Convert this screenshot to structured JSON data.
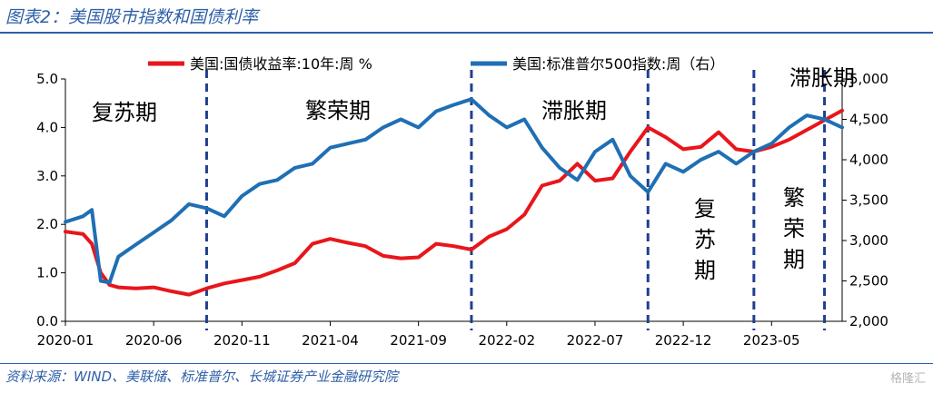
{
  "header": {
    "title": "图表2：美国股市指数和国债利率"
  },
  "footer": {
    "source": "资料来源：WIND、美联储、标准普尔、长城证券产业金融研究院",
    "watermark": "格隆汇"
  },
  "colors": {
    "yield": "#e8161b",
    "spx": "#1f6fb4",
    "divider": "#1f3f8f",
    "title": "#2e5fa8"
  },
  "chart_data": {
    "type": "line",
    "title": "",
    "xlabel": "",
    "ylabel": "",
    "x_ticks": [
      "2020-01",
      "2020-06",
      "2020-11",
      "2021-04",
      "2021-09",
      "2022-02",
      "2022-07",
      "2022-12",
      "2023-05"
    ],
    "y_left": {
      "range": [
        0,
        5.0
      ],
      "ticks": [
        "0.0",
        "1.0",
        "2.0",
        "3.0",
        "4.0",
        "5.0"
      ]
    },
    "y_right": {
      "range": [
        2000,
        5000
      ],
      "ticks": [
        "2,000",
        "2,500",
        "3,000",
        "3,500",
        "4,000",
        "4,500",
        "5,000"
      ]
    },
    "grid": false,
    "legend_position": "top",
    "series": [
      {
        "name": "美国:国债收益率:10年:周 %",
        "axis": "left",
        "x": [
          "2020-01",
          "2020-02",
          "2020-02",
          "2020-03",
          "2020-03",
          "2020-04",
          "2020-05",
          "2020-06",
          "2020-07",
          "2020-08",
          "2020-09",
          "2020-10",
          "2020-11",
          "2020-12",
          "2021-01",
          "2021-02",
          "2021-03",
          "2021-04",
          "2021-05",
          "2021-06",
          "2021-07",
          "2021-08",
          "2021-09",
          "2021-10",
          "2021-11",
          "2021-12",
          "2022-01",
          "2022-02",
          "2022-03",
          "2022-04",
          "2022-05",
          "2022-06",
          "2022-07",
          "2022-08",
          "2022-09",
          "2022-10",
          "2022-11",
          "2022-12",
          "2023-01",
          "2023-02",
          "2023-03",
          "2023-04",
          "2023-05",
          "2023-06",
          "2023-07",
          "2023-08",
          "2023-09"
        ],
        "values": [
          1.85,
          1.8,
          1.6,
          1.0,
          0.75,
          0.7,
          0.68,
          0.7,
          0.62,
          0.55,
          0.68,
          0.78,
          0.85,
          0.92,
          1.05,
          1.2,
          1.6,
          1.7,
          1.62,
          1.55,
          1.35,
          1.3,
          1.32,
          1.6,
          1.55,
          1.48,
          1.75,
          1.9,
          2.2,
          2.8,
          2.9,
          3.25,
          2.9,
          2.95,
          3.5,
          4.0,
          3.8,
          3.55,
          3.6,
          3.9,
          3.55,
          3.5,
          3.6,
          3.75,
          3.95,
          4.15,
          4.35
        ]
      },
      {
        "name": "美国:标准普尔500指数:周（右）",
        "axis": "right",
        "x": [
          "2020-01",
          "2020-02",
          "2020-02",
          "2020-03",
          "2020-03",
          "2020-04",
          "2020-05",
          "2020-06",
          "2020-07",
          "2020-08",
          "2020-09",
          "2020-10",
          "2020-11",
          "2020-12",
          "2021-01",
          "2021-02",
          "2021-03",
          "2021-04",
          "2021-05",
          "2021-06",
          "2021-07",
          "2021-08",
          "2021-09",
          "2021-10",
          "2021-11",
          "2021-12",
          "2022-01",
          "2022-02",
          "2022-03",
          "2022-04",
          "2022-05",
          "2022-06",
          "2022-07",
          "2022-08",
          "2022-09",
          "2022-10",
          "2022-11",
          "2022-12",
          "2023-01",
          "2023-02",
          "2023-03",
          "2023-04",
          "2023-05",
          "2023-06",
          "2023-07",
          "2023-08",
          "2023-09"
        ],
        "values": [
          3230,
          3300,
          3380,
          2500,
          2480,
          2800,
          2950,
          3100,
          3250,
          3450,
          3400,
          3300,
          3550,
          3700,
          3750,
          3900,
          3950,
          4150,
          4200,
          4250,
          4400,
          4500,
          4400,
          4600,
          4680,
          4750,
          4550,
          4400,
          4500,
          4150,
          3900,
          3750,
          4100,
          4250,
          3800,
          3600,
          3950,
          3850,
          4000,
          4100,
          3950,
          4100,
          4200,
          4400,
          4550,
          4500,
          4400
        ]
      }
    ],
    "phases": [
      {
        "label": "复苏期",
        "start": "2020-01",
        "end": "2020-09"
      },
      {
        "label": "繁荣期",
        "start": "2020-09",
        "end": "2021-12"
      },
      {
        "label": "滞胀期",
        "start": "2021-12",
        "end": "2022-10"
      },
      {
        "label": "复苏期",
        "start": "2022-10",
        "end": "2023-04"
      },
      {
        "label": "繁荣期",
        "start": "2023-04",
        "end": "2023-08"
      },
      {
        "label": "滞胀期",
        "start": "2023-08",
        "end": "2023-09"
      }
    ]
  }
}
